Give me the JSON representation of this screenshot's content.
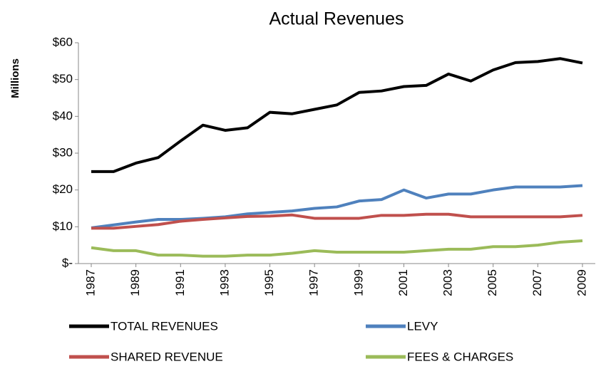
{
  "chart_data": {
    "type": "line",
    "title": "Actual Revenues",
    "y_label": "Millions",
    "x": [
      1987,
      1988,
      1989,
      1990,
      1991,
      1992,
      1993,
      1994,
      1995,
      1996,
      1997,
      1998,
      1999,
      2000,
      2001,
      2002,
      2003,
      2004,
      2005,
      2006,
      2007,
      2008,
      2009
    ],
    "xlim": [
      1987,
      2009
    ],
    "xticks": [
      1987,
      1989,
      1991,
      1993,
      1995,
      1997,
      1999,
      2001,
      2003,
      2005,
      2007,
      2009
    ],
    "ylim": [
      0,
      60
    ],
    "yticks": [
      {
        "value": 0,
        "label": "$-"
      },
      {
        "value": 10,
        "label": "$10"
      },
      {
        "value": 20,
        "label": "$20"
      },
      {
        "value": 30,
        "label": "$30"
      },
      {
        "value": 40,
        "label": "$40"
      },
      {
        "value": 50,
        "label": "$50"
      },
      {
        "value": 60,
        "label": "$60"
      }
    ],
    "series": [
      {
        "name": "TOTAL REVENUES",
        "color": "#000000",
        "values": [
          25,
          25,
          27.3,
          28.8,
          33.3,
          37.6,
          36.2,
          36.9,
          41.1,
          40.7,
          41.9,
          43.1,
          46.5,
          46.9,
          48.1,
          48.4,
          51.5,
          49.6,
          52.6,
          54.6,
          54.9,
          55.7,
          54.5
        ]
      },
      {
        "name": "LEVY",
        "color": "#4f81bd",
        "values": [
          9.7,
          10.5,
          11.3,
          12,
          12,
          12.3,
          12.7,
          13.5,
          13.9,
          14.3,
          15,
          15.4,
          17,
          17.4,
          20,
          17.8,
          18.9,
          18.9,
          20,
          20.8,
          20.8,
          20.8,
          21.2
        ]
      },
      {
        "name": "SHARED REVENUE",
        "color": "#c0504d",
        "values": [
          9.6,
          9.6,
          10.1,
          10.6,
          11.5,
          12,
          12.4,
          12.8,
          12.9,
          13.2,
          12.3,
          12.3,
          12.3,
          13.1,
          13.1,
          13.4,
          13.4,
          12.7,
          12.7,
          12.7,
          12.7,
          12.7,
          13.1
        ]
      },
      {
        "name": "FEES & CHARGES",
        "color": "#9bbb59",
        "values": [
          4.3,
          3.5,
          3.5,
          2.3,
          2.3,
          2,
          2,
          2.3,
          2.3,
          2.8,
          3.5,
          3.1,
          3.1,
          3.1,
          3.1,
          3.5,
          3.9,
          3.9,
          4.6,
          4.6,
          5,
          5.8,
          6.2
        ]
      }
    ]
  }
}
